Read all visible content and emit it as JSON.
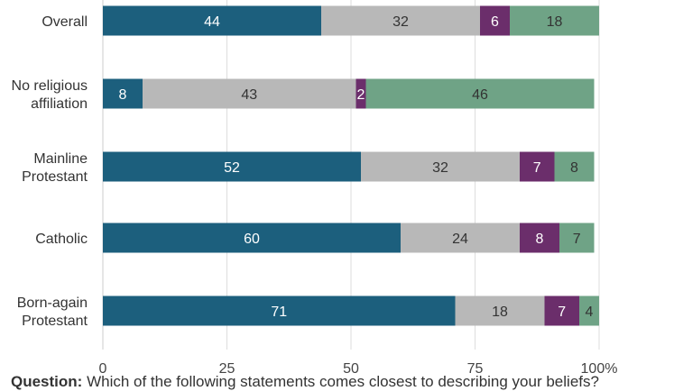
{
  "chart_data": {
    "type": "bar",
    "orientation": "horizontal",
    "stacked": true,
    "categories": [
      "Overall",
      "No religious affiliation",
      "Mainline Protestant",
      "Catholic",
      "Born-again Protestant"
    ],
    "category_label_lines": [
      [
        "Overall"
      ],
      [
        "No religious",
        "affiliation"
      ],
      [
        "Mainline",
        "Protestant"
      ],
      [
        "Catholic"
      ],
      [
        "Born-again",
        "Protestant"
      ]
    ],
    "series": [
      {
        "color": "#1c5f7d",
        "label_color": "#ffffff",
        "values": [
          44,
          8,
          52,
          60,
          71
        ]
      },
      {
        "color": "#b8b8b8",
        "label_color": "#333333",
        "values": [
          32,
          43,
          32,
          24,
          18
        ]
      },
      {
        "color": "#6b2e6b",
        "label_color": "#ffffff",
        "values": [
          6,
          2,
          7,
          8,
          7
        ]
      },
      {
        "color": "#6fa386",
        "label_color": "#333333",
        "values": [
          18,
          46,
          8,
          7,
          4
        ]
      }
    ],
    "xlim": [
      0,
      100
    ],
    "xticks": [
      "0",
      "25",
      "50",
      "75",
      "100%"
    ],
    "xtick_values": [
      0,
      25,
      50,
      75,
      100
    ],
    "grid": true
  },
  "footnote": {
    "label": "Question:",
    "text": " Which of the following statements comes closest to describing your beliefs?"
  }
}
